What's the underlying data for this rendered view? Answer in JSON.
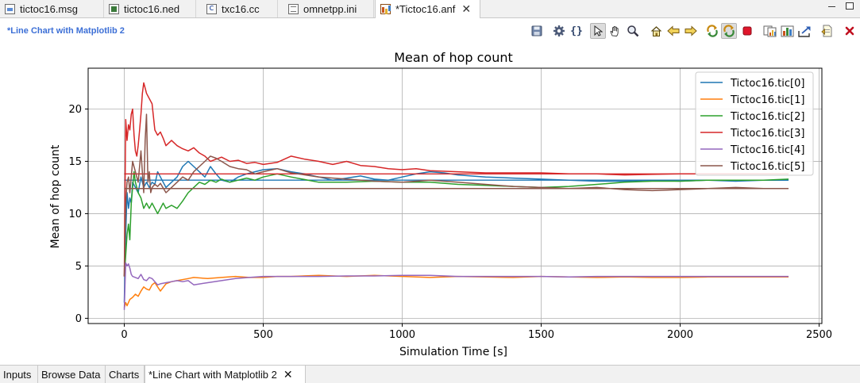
{
  "editor_tabs": [
    {
      "label": "tictoc16.msg",
      "icon": "msg-file-icon",
      "active": false
    },
    {
      "label": "tictoc16.ned",
      "icon": "ned-file-icon",
      "active": false
    },
    {
      "label": "txc16.cc",
      "icon": "cpp-file-icon",
      "active": false
    },
    {
      "label": "omnetpp.ini",
      "icon": "ini-file-icon",
      "active": false
    },
    {
      "label": "*Tictoc16.anf",
      "icon": "anf-file-icon",
      "active": true
    }
  ],
  "editor": {
    "title": "*Line Chart with Matplotlib 2"
  },
  "toolbar_icons": [
    "save-icon",
    "settings-gear-icon",
    "braces-icon",
    "pointer-icon",
    "pan-hand-icon",
    "zoom-magnifier-icon",
    "home-icon",
    "back-arrow-icon",
    "forward-arrow-icon",
    "refresh-icon",
    "auto-refresh-icon",
    "stop-icon",
    "copy-image-icon",
    "export-image-icon",
    "export-data-icon",
    "open-script-icon",
    "close-x-icon"
  ],
  "chart_data": {
    "type": "line",
    "title": "Mean of hop count",
    "xlabel": "Simulation Time [s]",
    "ylabel": "Mean of hop count",
    "xlim": [
      -130,
      2510
    ],
    "ylim": [
      -0.5,
      23.9
    ],
    "xticks": [
      0,
      500,
      1000,
      1500,
      2000,
      2500
    ],
    "yticks": [
      0,
      5,
      10,
      15,
      20
    ],
    "grid": true,
    "legend_position": "top-right",
    "series": [
      {
        "name": "Tictoc16.tic[0]",
        "color": "#1f77b4",
        "x": [
          0,
          5,
          10,
          15,
          20,
          25,
          30,
          40,
          50,
          60,
          70,
          80,
          90,
          100,
          110,
          120,
          130,
          140,
          150,
          170,
          190,
          210,
          230,
          250,
          270,
          290,
          310,
          330,
          350,
          380,
          410,
          440,
          470,
          500,
          550,
          600,
          650,
          700,
          750,
          800,
          850,
          900,
          950,
          1000,
          1050,
          1100,
          1150,
          1200,
          1300,
          1400,
          1500,
          1600,
          1700,
          1800,
          1900,
          2000,
          2100,
          2200,
          2300,
          2390
        ],
        "y": [
          1.5,
          8,
          12,
          10.5,
          11.5,
          11,
          13,
          12.5,
          12,
          13.5,
          12.5,
          13,
          12.5,
          13,
          12.8,
          14,
          13.5,
          13,
          12.5,
          13,
          13.5,
          14.5,
          15,
          14.5,
          14,
          13.5,
          14.5,
          13.8,
          13.2,
          13,
          13.5,
          13.8,
          14,
          14.2,
          14.3,
          14,
          13.8,
          13.5,
          13.2,
          13.4,
          13.6,
          13.3,
          13.2,
          13.5,
          13.8,
          14,
          13.9,
          13.7,
          13.5,
          13.4,
          13.3,
          13.2,
          13.1,
          13.1,
          13.2,
          13.1,
          13.2,
          13.1,
          13.2,
          13.2
        ]
      },
      {
        "name": "Tictoc16.tic[1]",
        "color": "#ff7f0e",
        "x": [
          0,
          5,
          10,
          20,
          30,
          40,
          50,
          60,
          70,
          80,
          90,
          100,
          110,
          120,
          130,
          150,
          170,
          190,
          210,
          230,
          250,
          300,
          350,
          400,
          450,
          500,
          550,
          600,
          700,
          800,
          900,
          1000,
          1100,
          1200,
          1300,
          1400,
          1500,
          1600,
          1700,
          1800,
          1900,
          2000,
          2100,
          2200,
          2300,
          2390
        ],
        "y": [
          1,
          1.5,
          1.2,
          1.8,
          2,
          2.3,
          2.1,
          2.6,
          3,
          2.8,
          2.7,
          3.2,
          3.4,
          3,
          2.6,
          3.3,
          3.5,
          3.6,
          3.7,
          3.8,
          3.9,
          3.8,
          3.9,
          4,
          3.9,
          3.9,
          4,
          4,
          4.1,
          4,
          4.1,
          4,
          3.9,
          4,
          3.95,
          3.9,
          4,
          3.95,
          3.9,
          3.95,
          3.9,
          3.9,
          3.95,
          3.95,
          3.95,
          3.95
        ]
      },
      {
        "name": "Tictoc16.tic[2]",
        "color": "#2ca02c",
        "x": [
          0,
          5,
          10,
          15,
          20,
          25,
          30,
          35,
          40,
          50,
          60,
          70,
          80,
          90,
          100,
          110,
          120,
          130,
          140,
          150,
          170,
          190,
          210,
          230,
          250,
          270,
          290,
          310,
          330,
          350,
          380,
          410,
          440,
          470,
          500,
          550,
          600,
          700,
          800,
          900,
          1000,
          1100,
          1200,
          1300,
          1400,
          1500,
          1600,
          1700,
          1800,
          1900,
          2000,
          2100,
          2200,
          2300,
          2390
        ],
        "y": [
          4,
          6,
          8,
          9,
          7.5,
          11,
          12.5,
          14,
          13,
          12,
          11.5,
          10.5,
          11,
          10.5,
          11,
          10.5,
          10,
          10.5,
          11,
          10.5,
          10.8,
          10.5,
          11.2,
          12,
          12.5,
          13,
          12.8,
          13.2,
          13,
          13.3,
          13,
          13.2,
          13.4,
          13.2,
          13.5,
          13.8,
          13.5,
          13,
          13,
          13.1,
          13,
          13,
          12.8,
          12.7,
          12.6,
          12.5,
          12.6,
          12.8,
          13,
          13.1,
          13.1,
          13.2,
          13.2,
          13.2,
          13.3
        ]
      },
      {
        "name": "Tictoc16.tic[3]",
        "color": "#d62728",
        "x": [
          0,
          5,
          10,
          15,
          20,
          25,
          30,
          35,
          40,
          45,
          50,
          55,
          60,
          65,
          70,
          75,
          80,
          90,
          100,
          110,
          120,
          130,
          140,
          150,
          170,
          190,
          210,
          230,
          250,
          270,
          290,
          310,
          330,
          350,
          380,
          410,
          440,
          470,
          500,
          550,
          600,
          650,
          700,
          750,
          800,
          850,
          900,
          950,
          1000,
          1050,
          1100,
          1200,
          1300,
          1400,
          1500,
          1600,
          1700,
          1800,
          1900,
          2000,
          2100,
          2200,
          2300,
          2390
        ],
        "y": [
          4,
          19,
          17,
          18.5,
          18,
          19.5,
          20,
          17.5,
          16,
          15.5,
          16.5,
          18,
          19.5,
          21.5,
          22.5,
          22,
          21.5,
          21,
          20.5,
          18,
          17.5,
          17.8,
          17.2,
          16.5,
          17,
          16.5,
          16.2,
          16,
          16.3,
          15.8,
          15.5,
          15,
          15.2,
          15.4,
          15,
          15.1,
          14.8,
          14.9,
          14.7,
          14.9,
          15.5,
          15.2,
          15,
          14.7,
          15,
          14.6,
          14.5,
          14.3,
          14.2,
          14.3,
          14.1,
          14,
          13.9,
          13.9,
          13.9,
          13.8,
          13.8,
          13.7,
          13.75,
          13.8,
          13.8,
          13.8,
          13.8,
          13.8
        ]
      },
      {
        "name": "Tictoc16.tic[4]",
        "color": "#9467bd",
        "x": [
          0,
          5,
          10,
          15,
          20,
          25,
          30,
          40,
          50,
          60,
          70,
          80,
          90,
          100,
          110,
          120,
          130,
          150,
          170,
          190,
          210,
          230,
          250,
          300,
          350,
          400,
          450,
          500,
          600,
          700,
          800,
          900,
          1000,
          1100,
          1200,
          1300,
          1400,
          1500,
          1600,
          1700,
          1800,
          1900,
          2000,
          2100,
          2200,
          2300,
          2390
        ],
        "y": [
          0.8,
          5.3,
          5,
          5.2,
          4.8,
          4.2,
          4,
          3.9,
          3.8,
          4.2,
          3.7,
          3.6,
          3.9,
          3.8,
          3.5,
          3.2,
          3.3,
          3.4,
          3.5,
          3.6,
          3.5,
          3.6,
          3.2,
          3.4,
          3.6,
          3.8,
          3.9,
          4,
          4,
          4,
          4.05,
          4.05,
          4.1,
          4.1,
          4,
          4,
          4,
          4,
          3.95,
          4,
          4,
          4,
          4,
          4,
          4,
          4,
          4
        ]
      },
      {
        "name": "Tictoc16.tic[5]",
        "color": "#8c564b",
        "x": [
          0,
          5,
          10,
          15,
          20,
          30,
          40,
          50,
          60,
          70,
          75,
          80,
          85,
          90,
          95,
          100,
          110,
          120,
          130,
          150,
          170,
          190,
          210,
          230,
          250,
          270,
          290,
          310,
          330,
          350,
          380,
          410,
          440,
          470,
          500,
          550,
          600,
          700,
          800,
          900,
          1000,
          1100,
          1200,
          1300,
          1400,
          1500,
          1600,
          1700,
          1800,
          1900,
          2000,
          2100,
          2200,
          2300,
          2390
        ],
        "y": [
          4,
          11,
          13,
          13.5,
          12,
          15,
          14,
          13,
          16,
          12,
          17,
          19.5,
          13,
          14,
          12,
          12.5,
          12.8,
          12.6,
          12.9,
          12,
          12.5,
          13,
          13.5,
          13.2,
          14,
          14.5,
          15,
          15.5,
          15.3,
          15,
          14.5,
          14.3,
          14.2,
          13.8,
          14,
          14.3,
          13.9,
          13.5,
          13.3,
          13.1,
          13,
          13.2,
          13,
          12.8,
          12.6,
          12.5,
          12.4,
          12.5,
          12.3,
          12.2,
          12.3,
          12.4,
          12.5,
          12.4,
          12.4
        ]
      }
    ]
  },
  "bottom_tabs": [
    {
      "label": "Inputs",
      "active": false
    },
    {
      "label": "Browse Data",
      "active": false
    },
    {
      "label": "Charts",
      "active": false
    },
    {
      "label": "*Line Chart with Matplotlib 2",
      "active": true
    }
  ]
}
